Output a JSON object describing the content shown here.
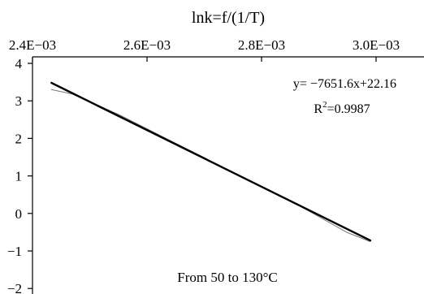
{
  "chart_data": {
    "type": "line",
    "title": "",
    "xlabel": "lnk=f/(1/T)",
    "ylabel": "",
    "x_axis_position": "top",
    "xlim": [
      0.0024,
      0.003
    ],
    "ylim": [
      -2,
      4
    ],
    "x_ticks": [
      0.0024,
      0.0026,
      0.0028,
      0.003
    ],
    "x_tick_labels": [
      "2.4E−03",
      "2.6E−03",
      "2.8E−03",
      "3.0E−03"
    ],
    "y_ticks": [
      4,
      3,
      2,
      1,
      0,
      -1,
      -2
    ],
    "y_tick_labels": [
      "4",
      "3",
      "2",
      "1",
      "0",
      "−1",
      "−2"
    ],
    "grid": false,
    "series": [
      {
        "style": "thin-gray",
        "x": [
          0.002433,
          0.00247,
          0.00255,
          0.00265,
          0.00275,
          0.00285,
          0.00295,
          0.00299
        ],
        "y": [
          3.3,
          3.18,
          2.64,
          1.87,
          1.1,
          0.34,
          -0.51,
          -0.75
        ]
      },
      {
        "style": "thick-black",
        "x": [
          0.002433,
          0.00299
        ],
        "y": [
          3.48,
          -0.72
        ]
      }
    ],
    "annotations": {
      "equation": "y= −7651.6x+22.16",
      "r2_prefix": "R",
      "r2_sup": "2",
      "r2_value": "=0.9987",
      "range_note": "From 50 to 130°C"
    }
  }
}
